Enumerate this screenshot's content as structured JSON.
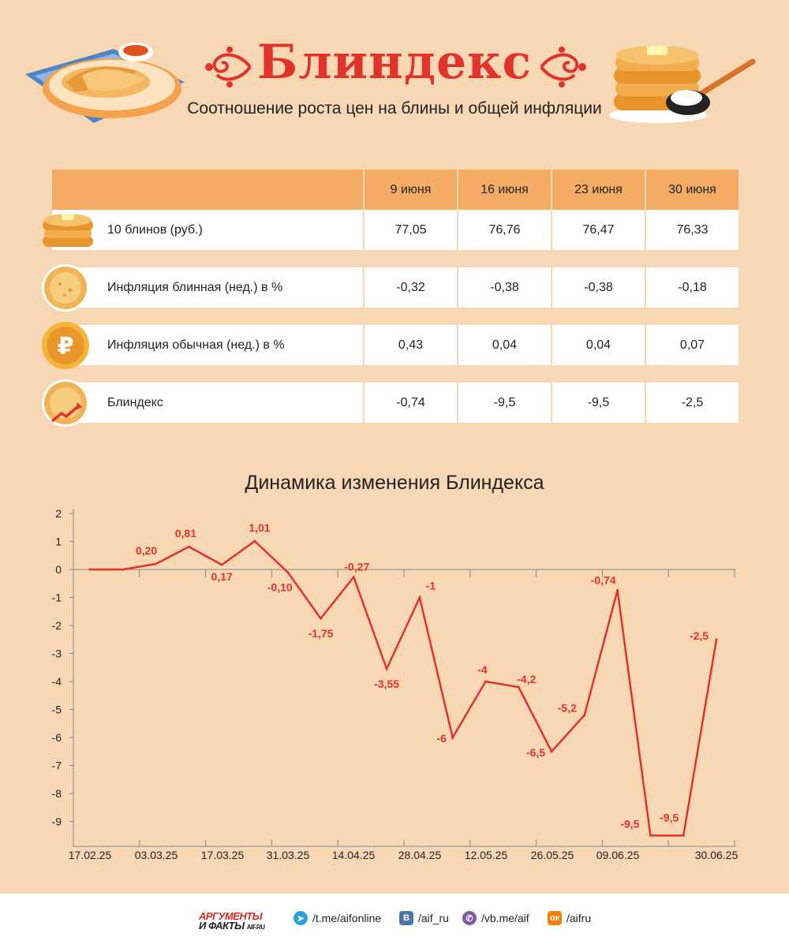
{
  "header": {
    "title": "Блиндекс",
    "subtitle": "Соотношение роста цен на блины и общей инфляции"
  },
  "table": {
    "columns": [
      "9 июня",
      "16 июня",
      "23 июня",
      "30 июня"
    ],
    "rows": [
      {
        "icon": "pancake-stack-icon",
        "label": "10 блинов (руб.)",
        "values": [
          "77,05",
          "76,76",
          "76,47",
          "76,33"
        ]
      },
      {
        "icon": "pancake-icon",
        "label": "Инфляция блинная (нед.) в %",
        "values": [
          "-0,32",
          "-0,38",
          "-0,38",
          "-0,18"
        ]
      },
      {
        "icon": "ruble-coin-icon",
        "label": "Инфляция обычная (нед.) в %",
        "values": [
          "0,43",
          "0,04",
          "0,04",
          "0,07"
        ]
      },
      {
        "icon": "pancake-arrow-icon",
        "label": "Блиндекс",
        "values": [
          "-0,74",
          "-9,5",
          "-9,5",
          "-2,5"
        ]
      }
    ]
  },
  "chart_title": "Динамика изменения Блиндекса",
  "chart_data": {
    "type": "line",
    "title": "Динамика изменения Блиндекса",
    "xlabel": "",
    "ylabel": "",
    "ylim": [
      -9.5,
      2
    ],
    "yticks": [
      "2",
      "1",
      "0",
      "-1",
      "-2",
      "-3",
      "-4",
      "-5",
      "-6",
      "-7",
      "-8",
      "-9"
    ],
    "xtick_labels": [
      "17.02.25",
      "03.03.25",
      "17.03.25",
      "31.03.25",
      "14.04.25",
      "28.04.25",
      "12.05.25",
      "26.05.25",
      "09.06.25",
      "30.06.25"
    ],
    "line_color": "#e2332a",
    "series": [
      {
        "values": [
          0,
          0,
          0.2,
          0.81,
          0.17,
          1.01,
          -0.1,
          -1.75,
          -0.27,
          -3.55,
          -1,
          -6,
          -4,
          -4.2,
          -6.5,
          -5.2,
          -0.74,
          -9.5,
          -9.5,
          -2.5
        ],
        "labels": [
          "",
          "",
          "0,20",
          "0,81",
          "0,17",
          "1,01",
          "-0,10",
          "-1,75",
          "-0,27",
          "-3,55",
          "-1",
          "-6",
          "-4",
          "-4,2",
          "-6,5",
          "-5,2",
          "-0,74",
          "-9,5",
          "-9,5",
          "-2,5"
        ]
      }
    ],
    "grid": false
  },
  "footer": {
    "logo_line1": "АРГУМЕНТЫ",
    "logo_line2": "И ФАКТЫ",
    "logo_site": "AIF.RU",
    "links": [
      {
        "icon": "telegram-icon",
        "text": "/t.me/aifonline",
        "color": "#2aa3dc"
      },
      {
        "icon": "vk-icon",
        "text": "/aif_ru",
        "color": "#4a76a8"
      },
      {
        "icon": "viber-icon",
        "text": "/vb.me/aif",
        "color": "#7d59a3"
      },
      {
        "icon": "odnoklassniki-icon",
        "text": "/aifru",
        "color": "#ee8208"
      }
    ]
  }
}
